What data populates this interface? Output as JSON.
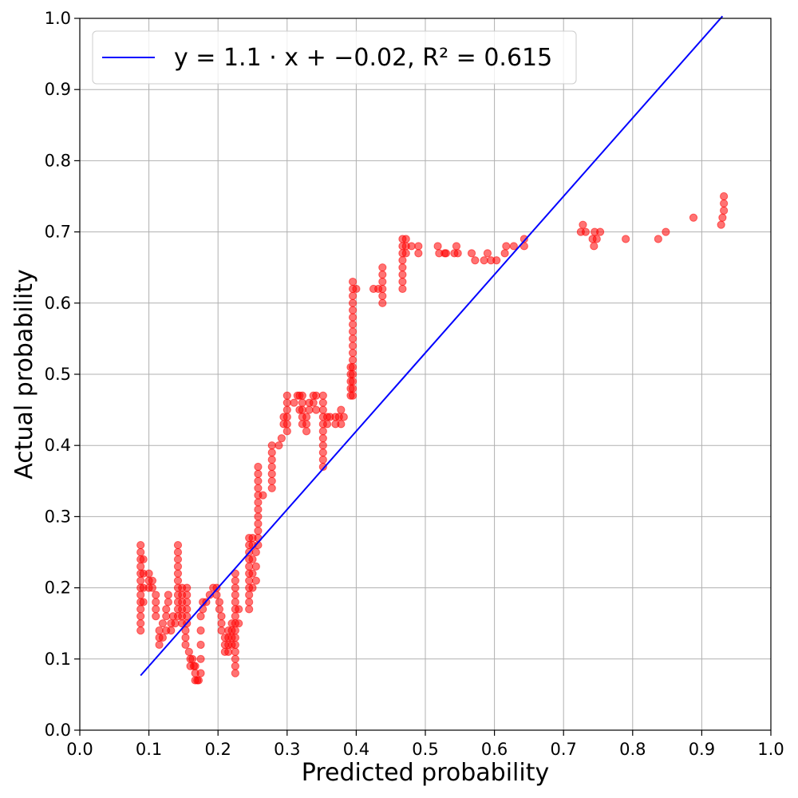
{
  "chart_data": {
    "type": "scatter",
    "xlabel": "Predicted probability",
    "ylabel": "Actual probability",
    "xlim": [
      0.0,
      1.0
    ],
    "ylim": [
      0.0,
      1.0
    ],
    "xticks": [
      "0.0",
      "0.1",
      "0.2",
      "0.3",
      "0.4",
      "0.5",
      "0.6",
      "0.7",
      "0.8",
      "0.9",
      "1.0"
    ],
    "yticks": [
      "0.0",
      "0.1",
      "0.2",
      "0.3",
      "0.4",
      "0.5",
      "0.6",
      "0.7",
      "0.8",
      "0.9",
      "1.0"
    ],
    "grid": true,
    "legend_position": "top-left",
    "fit_line": {
      "label": "y = 1.1 · x + −0.02, R² = 0.615",
      "slope": 1.1,
      "intercept": -0.02,
      "x": [
        0.088,
        0.93
      ],
      "color": "#0000ff"
    },
    "scatter": {
      "color": "#ff0000",
      "points": [
        [
          0.088,
          0.14
        ],
        [
          0.088,
          0.15
        ],
        [
          0.088,
          0.16
        ],
        [
          0.088,
          0.17
        ],
        [
          0.088,
          0.18
        ],
        [
          0.088,
          0.19
        ],
        [
          0.088,
          0.2
        ],
        [
          0.088,
          0.21
        ],
        [
          0.088,
          0.22
        ],
        [
          0.088,
          0.23
        ],
        [
          0.088,
          0.24
        ],
        [
          0.088,
          0.25
        ],
        [
          0.088,
          0.26
        ],
        [
          0.092,
          0.18
        ],
        [
          0.092,
          0.2
        ],
        [
          0.092,
          0.22
        ],
        [
          0.092,
          0.24
        ],
        [
          0.1,
          0.2
        ],
        [
          0.1,
          0.21
        ],
        [
          0.1,
          0.22
        ],
        [
          0.105,
          0.2
        ],
        [
          0.105,
          0.21
        ],
        [
          0.11,
          0.16
        ],
        [
          0.11,
          0.17
        ],
        [
          0.11,
          0.18
        ],
        [
          0.11,
          0.19
        ],
        [
          0.115,
          0.12
        ],
        [
          0.115,
          0.13
        ],
        [
          0.115,
          0.14
        ],
        [
          0.12,
          0.13
        ],
        [
          0.12,
          0.15
        ],
        [
          0.125,
          0.14
        ],
        [
          0.125,
          0.16
        ],
        [
          0.125,
          0.17
        ],
        [
          0.128,
          0.18
        ],
        [
          0.128,
          0.19
        ],
        [
          0.132,
          0.14
        ],
        [
          0.132,
          0.15
        ],
        [
          0.135,
          0.16
        ],
        [
          0.138,
          0.15
        ],
        [
          0.142,
          0.16
        ],
        [
          0.142,
          0.17
        ],
        [
          0.142,
          0.18
        ],
        [
          0.142,
          0.19
        ],
        [
          0.142,
          0.2
        ],
        [
          0.142,
          0.21
        ],
        [
          0.142,
          0.22
        ],
        [
          0.142,
          0.23
        ],
        [
          0.142,
          0.24
        ],
        [
          0.142,
          0.25
        ],
        [
          0.142,
          0.26
        ],
        [
          0.148,
          0.15
        ],
        [
          0.148,
          0.16
        ],
        [
          0.148,
          0.17
        ],
        [
          0.148,
          0.18
        ],
        [
          0.148,
          0.19
        ],
        [
          0.148,
          0.2
        ],
        [
          0.153,
          0.12
        ],
        [
          0.153,
          0.13
        ],
        [
          0.153,
          0.14
        ],
        [
          0.155,
          0.15
        ],
        [
          0.155,
          0.16
        ],
        [
          0.155,
          0.17
        ],
        [
          0.155,
          0.18
        ],
        [
          0.155,
          0.19
        ],
        [
          0.155,
          0.2
        ],
        [
          0.158,
          0.11
        ],
        [
          0.16,
          0.09
        ],
        [
          0.16,
          0.1
        ],
        [
          0.163,
          0.1
        ],
        [
          0.165,
          0.09
        ],
        [
          0.167,
          0.07
        ],
        [
          0.167,
          0.08
        ],
        [
          0.167,
          0.09
        ],
        [
          0.17,
          0.07
        ],
        [
          0.172,
          0.07
        ],
        [
          0.175,
          0.08
        ],
        [
          0.175,
          0.1
        ],
        [
          0.175,
          0.12
        ],
        [
          0.175,
          0.14
        ],
        [
          0.175,
          0.16
        ],
        [
          0.178,
          0.17
        ],
        [
          0.178,
          0.18
        ],
        [
          0.183,
          0.18
        ],
        [
          0.188,
          0.19
        ],
        [
          0.193,
          0.2
        ],
        [
          0.198,
          0.19
        ],
        [
          0.198,
          0.2
        ],
        [
          0.202,
          0.17
        ],
        [
          0.202,
          0.18
        ],
        [
          0.205,
          0.14
        ],
        [
          0.205,
          0.15
        ],
        [
          0.205,
          0.16
        ],
        [
          0.21,
          0.11
        ],
        [
          0.21,
          0.12
        ],
        [
          0.21,
          0.13
        ],
        [
          0.215,
          0.11
        ],
        [
          0.215,
          0.12
        ],
        [
          0.215,
          0.13
        ],
        [
          0.215,
          0.14
        ],
        [
          0.22,
          0.12
        ],
        [
          0.22,
          0.13
        ],
        [
          0.22,
          0.14
        ],
        [
          0.22,
          0.15
        ],
        [
          0.225,
          0.08
        ],
        [
          0.225,
          0.09
        ],
        [
          0.225,
          0.1
        ],
        [
          0.225,
          0.11
        ],
        [
          0.225,
          0.12
        ],
        [
          0.225,
          0.13
        ],
        [
          0.225,
          0.14
        ],
        [
          0.225,
          0.15
        ],
        [
          0.225,
          0.16
        ],
        [
          0.225,
          0.17
        ],
        [
          0.225,
          0.18
        ],
        [
          0.225,
          0.19
        ],
        [
          0.225,
          0.2
        ],
        [
          0.225,
          0.21
        ],
        [
          0.225,
          0.22
        ],
        [
          0.23,
          0.17
        ],
        [
          0.23,
          0.15
        ],
        [
          0.245,
          0.17
        ],
        [
          0.245,
          0.18
        ],
        [
          0.245,
          0.19
        ],
        [
          0.245,
          0.2
        ],
        [
          0.245,
          0.21
        ],
        [
          0.245,
          0.22
        ],
        [
          0.245,
          0.23
        ],
        [
          0.245,
          0.24
        ],
        [
          0.245,
          0.25
        ],
        [
          0.245,
          0.26
        ],
        [
          0.245,
          0.27
        ],
        [
          0.25,
          0.2
        ],
        [
          0.25,
          0.22
        ],
        [
          0.25,
          0.24
        ],
        [
          0.25,
          0.26
        ],
        [
          0.25,
          0.27
        ],
        [
          0.255,
          0.21
        ],
        [
          0.255,
          0.23
        ],
        [
          0.255,
          0.25
        ],
        [
          0.258,
          0.26
        ],
        [
          0.258,
          0.27
        ],
        [
          0.258,
          0.28
        ],
        [
          0.258,
          0.29
        ],
        [
          0.258,
          0.3
        ],
        [
          0.258,
          0.31
        ],
        [
          0.258,
          0.32
        ],
        [
          0.258,
          0.33
        ],
        [
          0.258,
          0.34
        ],
        [
          0.258,
          0.35
        ],
        [
          0.258,
          0.36
        ],
        [
          0.258,
          0.37
        ],
        [
          0.265,
          0.33
        ],
        [
          0.278,
          0.34
        ],
        [
          0.278,
          0.35
        ],
        [
          0.278,
          0.36
        ],
        [
          0.278,
          0.37
        ],
        [
          0.278,
          0.38
        ],
        [
          0.278,
          0.39
        ],
        [
          0.278,
          0.4
        ],
        [
          0.288,
          0.4
        ],
        [
          0.292,
          0.41
        ],
        [
          0.295,
          0.43
        ],
        [
          0.295,
          0.44
        ],
        [
          0.3,
          0.42
        ],
        [
          0.3,
          0.43
        ],
        [
          0.3,
          0.44
        ],
        [
          0.3,
          0.45
        ],
        [
          0.3,
          0.46
        ],
        [
          0.3,
          0.47
        ],
        [
          0.31,
          0.46
        ],
        [
          0.315,
          0.47
        ],
        [
          0.318,
          0.45
        ],
        [
          0.318,
          0.47
        ],
        [
          0.322,
          0.43
        ],
        [
          0.322,
          0.44
        ],
        [
          0.322,
          0.45
        ],
        [
          0.322,
          0.46
        ],
        [
          0.322,
          0.47
        ],
        [
          0.328,
          0.42
        ],
        [
          0.328,
          0.43
        ],
        [
          0.328,
          0.44
        ],
        [
          0.332,
          0.45
        ],
        [
          0.332,
          0.46
        ],
        [
          0.338,
          0.46
        ],
        [
          0.338,
          0.47
        ],
        [
          0.342,
          0.45
        ],
        [
          0.342,
          0.47
        ],
        [
          0.352,
          0.37
        ],
        [
          0.352,
          0.38
        ],
        [
          0.352,
          0.39
        ],
        [
          0.352,
          0.4
        ],
        [
          0.352,
          0.41
        ],
        [
          0.352,
          0.42
        ],
        [
          0.352,
          0.43
        ],
        [
          0.352,
          0.44
        ],
        [
          0.352,
          0.45
        ],
        [
          0.352,
          0.46
        ],
        [
          0.352,
          0.47
        ],
        [
          0.358,
          0.43
        ],
        [
          0.358,
          0.44
        ],
        [
          0.362,
          0.44
        ],
        [
          0.37,
          0.43
        ],
        [
          0.37,
          0.44
        ],
        [
          0.375,
          0.44
        ],
        [
          0.378,
          0.43
        ],
        [
          0.378,
          0.45
        ],
        [
          0.382,
          0.44
        ],
        [
          0.392,
          0.47
        ],
        [
          0.392,
          0.48
        ],
        [
          0.392,
          0.49
        ],
        [
          0.392,
          0.5
        ],
        [
          0.392,
          0.51
        ],
        [
          0.395,
          0.47
        ],
        [
          0.395,
          0.48
        ],
        [
          0.395,
          0.49
        ],
        [
          0.395,
          0.5
        ],
        [
          0.395,
          0.51
        ],
        [
          0.395,
          0.52
        ],
        [
          0.395,
          0.53
        ],
        [
          0.395,
          0.54
        ],
        [
          0.395,
          0.55
        ],
        [
          0.395,
          0.56
        ],
        [
          0.395,
          0.57
        ],
        [
          0.395,
          0.58
        ],
        [
          0.395,
          0.59
        ],
        [
          0.395,
          0.6
        ],
        [
          0.395,
          0.61
        ],
        [
          0.395,
          0.62
        ],
        [
          0.395,
          0.63
        ],
        [
          0.4,
          0.62
        ],
        [
          0.425,
          0.62
        ],
        [
          0.432,
          0.62
        ],
        [
          0.438,
          0.6
        ],
        [
          0.438,
          0.61
        ],
        [
          0.438,
          0.62
        ],
        [
          0.438,
          0.63
        ],
        [
          0.438,
          0.64
        ],
        [
          0.438,
          0.65
        ],
        [
          0.467,
          0.62
        ],
        [
          0.467,
          0.63
        ],
        [
          0.467,
          0.64
        ],
        [
          0.467,
          0.65
        ],
        [
          0.467,
          0.66
        ],
        [
          0.467,
          0.67
        ],
        [
          0.467,
          0.68
        ],
        [
          0.467,
          0.69
        ],
        [
          0.472,
          0.67
        ],
        [
          0.472,
          0.68
        ],
        [
          0.472,
          0.69
        ],
        [
          0.48,
          0.68
        ],
        [
          0.49,
          0.67
        ],
        [
          0.49,
          0.68
        ],
        [
          0.518,
          0.68
        ],
        [
          0.52,
          0.67
        ],
        [
          0.528,
          0.67
        ],
        [
          0.53,
          0.67
        ],
        [
          0.542,
          0.67
        ],
        [
          0.545,
          0.68
        ],
        [
          0.547,
          0.67
        ],
        [
          0.567,
          0.67
        ],
        [
          0.572,
          0.66
        ],
        [
          0.585,
          0.66
        ],
        [
          0.59,
          0.67
        ],
        [
          0.595,
          0.66
        ],
        [
          0.603,
          0.66
        ],
        [
          0.615,
          0.67
        ],
        [
          0.617,
          0.68
        ],
        [
          0.628,
          0.68
        ],
        [
          0.643,
          0.68
        ],
        [
          0.643,
          0.69
        ],
        [
          0.725,
          0.7
        ],
        [
          0.728,
          0.71
        ],
        [
          0.732,
          0.7
        ],
        [
          0.742,
          0.69
        ],
        [
          0.744,
          0.68
        ],
        [
          0.745,
          0.7
        ],
        [
          0.748,
          0.69
        ],
        [
          0.753,
          0.7
        ],
        [
          0.79,
          0.69
        ],
        [
          0.837,
          0.69
        ],
        [
          0.848,
          0.7
        ],
        [
          0.888,
          0.72
        ],
        [
          0.928,
          0.71
        ],
        [
          0.93,
          0.72
        ],
        [
          0.932,
          0.73
        ],
        [
          0.932,
          0.74
        ],
        [
          0.932,
          0.75
        ]
      ]
    }
  }
}
